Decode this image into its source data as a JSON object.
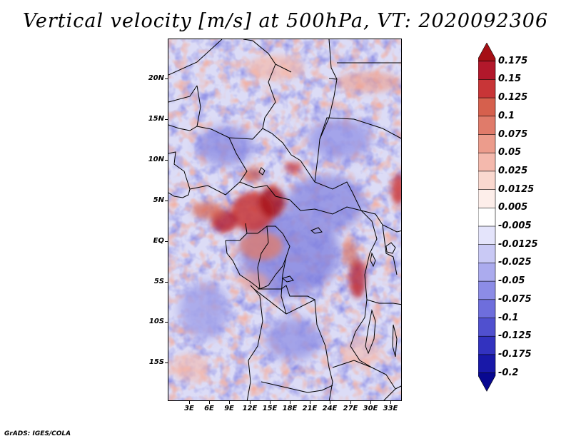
{
  "title": "Vertical velocity [m/s] at 500hPa, VT: 2020092306",
  "credit": "GrADS: IGES/COLA",
  "map": {
    "variable": "Vertical velocity",
    "units": "m/s",
    "level": "500hPa",
    "valid_time": "2020092306",
    "lat_labels": [
      "20N",
      "15N",
      "10N",
      "5N",
      "EQ",
      "5S",
      "10S",
      "15S"
    ],
    "lon_labels": [
      "3E",
      "6E",
      "9E",
      "12E",
      "15E",
      "18E",
      "21E",
      "24E",
      "27E",
      "30E",
      "33E"
    ]
  },
  "colorbar": {
    "labels": [
      "0.175",
      "0.15",
      "0.125",
      "0.1",
      "0.075",
      "0.05",
      "0.025",
      "0.0125",
      "0.005",
      "-0.005",
      "-0.0125",
      "-0.025",
      "-0.05",
      "-0.075",
      "-0.1",
      "-0.125",
      "-0.175",
      "-0.2"
    ],
    "colors": [
      "#a50f15",
      "#b2182b",
      "#c83537",
      "#d6604d",
      "#e07b6a",
      "#ec9c8c",
      "#f4b9ad",
      "#fad8cf",
      "#fdeeea",
      "#ffffff",
      "#e4e4fb",
      "#c9c9f5",
      "#ababee",
      "#8c8ce6",
      "#6e6edc",
      "#5050cf",
      "#3232bf",
      "#1818a8",
      "#080890"
    ]
  }
}
